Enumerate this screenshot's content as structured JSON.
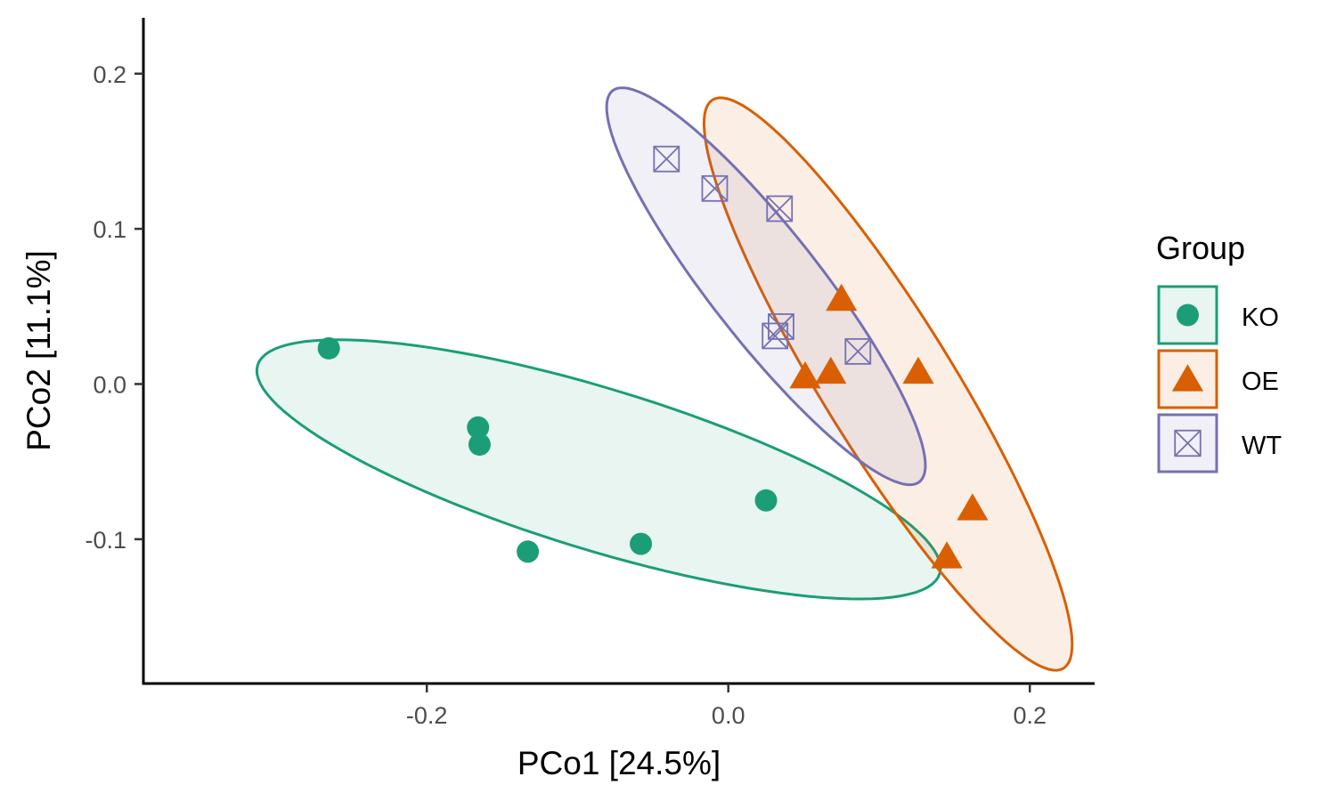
{
  "chart_data": {
    "type": "scatter",
    "xlabel": "PCo1 [24.5%]",
    "ylabel": "PCo2 [11.1%]",
    "xlim": [
      -0.388,
      0.243
    ],
    "ylim": [
      -0.193,
      0.236
    ],
    "x_ticks": [
      {
        "value": -0.2,
        "label": "-0.2"
      },
      {
        "value": 0.0,
        "label": "0.0"
      },
      {
        "value": 0.2,
        "label": "0.2"
      }
    ],
    "y_ticks": [
      {
        "value": -0.1,
        "label": "-0.1"
      },
      {
        "value": 0.0,
        "label": "0.0"
      },
      {
        "value": 0.1,
        "label": "0.1"
      },
      {
        "value": 0.2,
        "label": "0.2"
      }
    ],
    "grid": false,
    "legend": {
      "title": "Group",
      "position": "right",
      "entries": [
        "KO",
        "OE",
        "WT"
      ]
    },
    "series": [
      {
        "name": "KO",
        "color": "#1b9e77",
        "marker": "circle",
        "points": [
          {
            "x": -0.265,
            "y": 0.023
          },
          {
            "x": -0.166,
            "y": -0.028
          },
          {
            "x": -0.165,
            "y": -0.039
          },
          {
            "x": -0.133,
            "y": -0.108
          },
          {
            "x": -0.058,
            "y": -0.103
          },
          {
            "x": 0.025,
            "y": -0.075
          }
        ],
        "ellipse": {
          "cx": -0.086,
          "cy": -0.055,
          "rx": 0.236,
          "ry": 0.052,
          "angle_deg": -16.5
        }
      },
      {
        "name": "OE",
        "color": "#d95f02",
        "marker": "triangle",
        "points": [
          {
            "x": 0.075,
            "y": 0.055
          },
          {
            "x": 0.051,
            "y": 0.005
          },
          {
            "x": 0.068,
            "y": 0.008
          },
          {
            "x": 0.126,
            "y": 0.008
          },
          {
            "x": 0.162,
            "y": -0.08
          },
          {
            "x": 0.145,
            "y": -0.111
          }
        ],
        "ellipse": {
          "cx": 0.106,
          "cy": 0.0,
          "rx": 0.217,
          "ry": 0.043,
          "angle_deg": -57.5
        }
      },
      {
        "name": "WT",
        "color": "#7570b3",
        "marker": "square-x",
        "points": [
          {
            "x": -0.041,
            "y": 0.145
          },
          {
            "x": -0.009,
            "y": 0.126
          },
          {
            "x": 0.034,
            "y": 0.113
          },
          {
            "x": 0.035,
            "y": 0.037
          },
          {
            "x": 0.031,
            "y": 0.031
          },
          {
            "x": 0.086,
            "y": 0.021
          }
        ],
        "ellipse": {
          "cx": 0.025,
          "cy": 0.063,
          "rx": 0.162,
          "ry": 0.036,
          "angle_deg": -51.0
        }
      }
    ]
  }
}
